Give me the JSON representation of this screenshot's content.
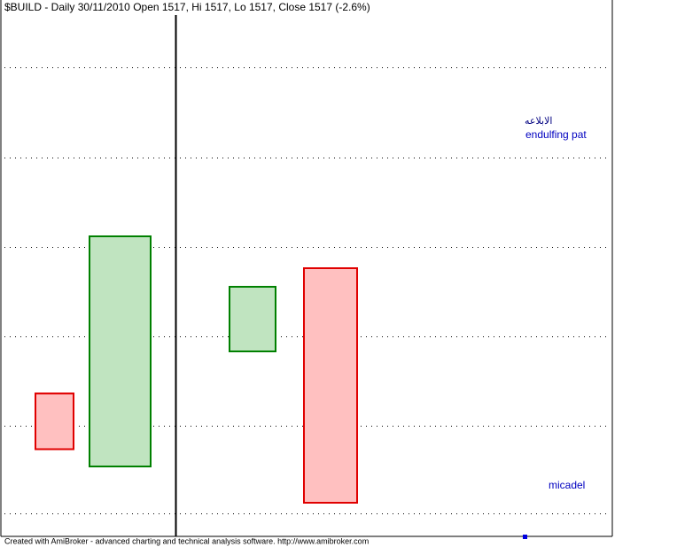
{
  "header": {
    "title": "$BUILD - Daily 30/11/2010 Open 1517, Hi 1517, Lo 1517, Close 1517 (-2.6%)"
  },
  "annotations": [
    {
      "label": "الابلاعه"
    },
    {
      "label": "endulfing pat"
    },
    {
      "label": "micadel"
    }
  ],
  "footer": {
    "text": "Created with AmiBroker - advanced charting and technical analysis software. http://www.amibroker.com"
  }
}
